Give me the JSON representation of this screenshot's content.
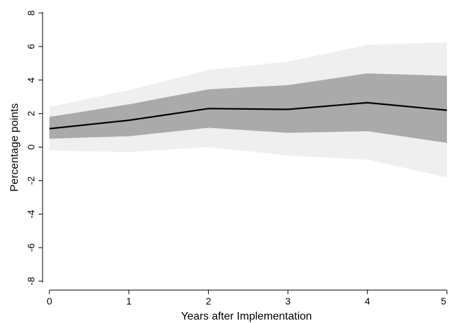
{
  "chart_data": {
    "type": "area",
    "title": "",
    "xlabel": "Years after Implementation",
    "ylabel": "Percentage points",
    "xlim": [
      0,
      5
    ],
    "ylim": [
      -8,
      8
    ],
    "x_ticks": [
      "0",
      "1",
      "2",
      "3",
      "4",
      "5"
    ],
    "y_ticks": [
      "-8",
      "-6",
      "-4",
      "-2",
      "0",
      "2",
      "4",
      "6",
      "8"
    ],
    "grid": false,
    "x": [
      0,
      1,
      2,
      3,
      4,
      5
    ],
    "series": [
      {
        "role": "estimate",
        "values": [
          1.1,
          1.6,
          2.3,
          2.25,
          2.65,
          2.2
        ]
      },
      {
        "role": "inner_band_upper",
        "values": [
          1.8,
          2.55,
          3.45,
          3.7,
          4.4,
          4.25
        ]
      },
      {
        "role": "inner_band_lower",
        "values": [
          0.5,
          0.65,
          1.15,
          0.85,
          0.95,
          0.25
        ]
      },
      {
        "role": "outer_band_upper",
        "values": [
          2.4,
          3.4,
          4.6,
          5.1,
          6.1,
          6.25
        ]
      },
      {
        "role": "outer_band_lower",
        "values": [
          -0.2,
          -0.3,
          0.0,
          -0.5,
          -0.75,
          -1.8
        ]
      }
    ],
    "colors": {
      "estimate_line": "#000000",
      "inner_band": "#aaaaaa",
      "outer_band": "#efefef",
      "axis": "#000000"
    }
  }
}
